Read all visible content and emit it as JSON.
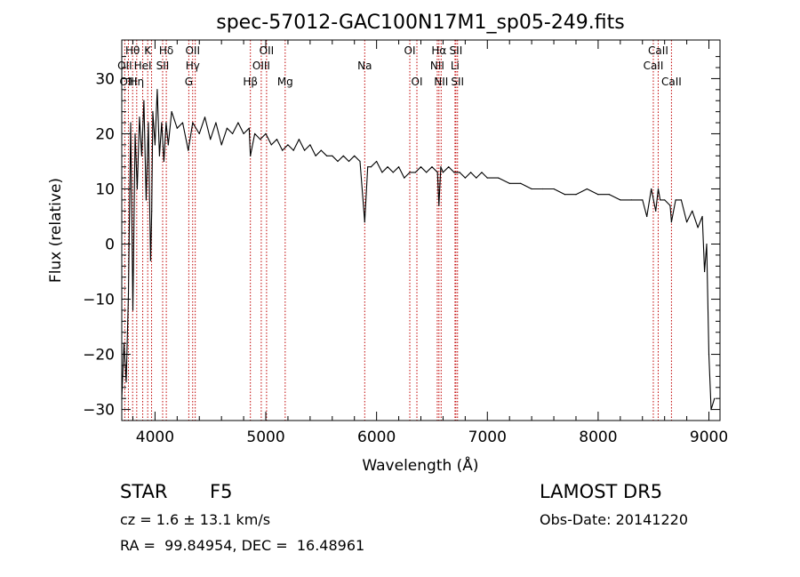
{
  "chart_data": {
    "type": "line",
    "title": "spec-57012-GAC100N17M1_sp05-249.fits",
    "xlabel": "Wavelength (Å)",
    "ylabel": "Flux (relative)",
    "xlim": [
      3700,
      9100
    ],
    "ylim": [
      -32,
      37
    ],
    "xticks": [
      4000,
      5000,
      6000,
      7000,
      8000,
      9000
    ],
    "yticks": [
      -30,
      -20,
      -10,
      0,
      10,
      20,
      30
    ],
    "grid": false,
    "series": [
      {
        "color": "#000000",
        "x": [
          3700,
          3720,
          3740,
          3760,
          3780,
          3800,
          3820,
          3840,
          3860,
          3880,
          3900,
          3920,
          3940,
          3960,
          3970,
          3980,
          4000,
          4020,
          4040,
          4060,
          4080,
          4100,
          4120,
          4150,
          4200,
          4250,
          4300,
          4340,
          4400,
          4450,
          4500,
          4550,
          4600,
          4650,
          4700,
          4750,
          4800,
          4850,
          4861,
          4900,
          4950,
          5000,
          5050,
          5100,
          5150,
          5200,
          5250,
          5300,
          5350,
          5400,
          5450,
          5500,
          5550,
          5600,
          5650,
          5700,
          5750,
          5800,
          5850,
          5893,
          5920,
          5950,
          6000,
          6050,
          6100,
          6150,
          6200,
          6250,
          6300,
          6350,
          6400,
          6450,
          6500,
          6550,
          6563,
          6580,
          6600,
          6650,
          6700,
          6750,
          6800,
          6850,
          6900,
          6950,
          7000,
          7100,
          7200,
          7300,
          7400,
          7500,
          7600,
          7700,
          7800,
          7900,
          8000,
          8100,
          8200,
          8300,
          8400,
          8440,
          8480,
          8500,
          8520,
          8542,
          8560,
          8600,
          8650,
          8662,
          8700,
          8750,
          8800,
          8850,
          8900,
          8940,
          8960,
          8980,
          9000,
          9020,
          9050
        ],
        "y": [
          -28,
          -18,
          -25,
          -9,
          22,
          -12,
          20,
          10,
          23,
          16,
          26,
          8,
          22,
          -3,
          6,
          24,
          18,
          28,
          16,
          22,
          15,
          22,
          18,
          24,
          21,
          22,
          17,
          22,
          20,
          23,
          19,
          22,
          18,
          21,
          20,
          22,
          20,
          21,
          16,
          20,
          19,
          20,
          18,
          19,
          17,
          18,
          17,
          19,
          17,
          18,
          16,
          17,
          16,
          16,
          15,
          16,
          15,
          16,
          15,
          4,
          14,
          14,
          15,
          13,
          14,
          13,
          14,
          12,
          13,
          13,
          14,
          13,
          14,
          13,
          7,
          14,
          13,
          14,
          13,
          13,
          12,
          13,
          12,
          13,
          12,
          12,
          11,
          11,
          10,
          10,
          10,
          9,
          9,
          10,
          9,
          9,
          8,
          8,
          8,
          5,
          10,
          8,
          6,
          10,
          8,
          8,
          7,
          4,
          8,
          8,
          4,
          6,
          3,
          5,
          -5,
          0,
          -20,
          -30,
          -28
        ]
      }
    ],
    "annotations": [
      {
        "label": "Hθ",
        "x": 3798,
        "row": 1
      },
      {
        "label": "K",
        "x": 3934,
        "row": 1
      },
      {
        "label": "Hδ",
        "x": 4102,
        "row": 1
      },
      {
        "label": "OII",
        "x": 4340,
        "row": 1
      },
      {
        "label": "OII",
        "x": 5007,
        "row": 1
      },
      {
        "label": "OI",
        "x": 6300,
        "row": 1
      },
      {
        "label": "Hα",
        "x": 6563,
        "row": 1
      },
      {
        "label": "SII",
        "x": 6716,
        "row": 1
      },
      {
        "label": "CaII",
        "x": 8542,
        "row": 1
      },
      {
        "label": "OII",
        "x": 3727,
        "row": 2
      },
      {
        "label": "HeI",
        "x": 3889,
        "row": 2
      },
      {
        "label": "SII",
        "x": 4069,
        "row": 2
      },
      {
        "label": "Hγ",
        "x": 4340,
        "row": 2
      },
      {
        "label": "OIII",
        "x": 4959,
        "row": 2
      },
      {
        "label": "Na",
        "x": 5893,
        "row": 2
      },
      {
        "label": "NII",
        "x": 6548,
        "row": 2
      },
      {
        "label": "Li",
        "x": 6708,
        "row": 2
      },
      {
        "label": "CaII",
        "x": 8498,
        "row": 2
      },
      {
        "label": "OIII",
        "x": 3760,
        "row": 3
      },
      {
        "label": "Hη",
        "x": 3835,
        "row": 3
      },
      {
        "label": "G",
        "x": 4305,
        "row": 3
      },
      {
        "label": "Hβ",
        "x": 4861,
        "row": 3
      },
      {
        "label": "Mg",
        "x": 5175,
        "row": 3
      },
      {
        "label": "OI",
        "x": 6364,
        "row": 3
      },
      {
        "label": "NII",
        "x": 6583,
        "row": 3
      },
      {
        "label": "SII",
        "x": 6731,
        "row": 3
      },
      {
        "label": "CaII",
        "x": 8662,
        "row": 3
      }
    ],
    "line_color": "#c00000",
    "line_positions": [
      3727,
      3760,
      3798,
      3835,
      3889,
      3934,
      3969,
      4069,
      4102,
      4305,
      4340,
      4363,
      4861,
      4959,
      5007,
      5175,
      5893,
      6300,
      6364,
      6548,
      6563,
      6583,
      6708,
      6716,
      6731,
      8498,
      8542,
      8662
    ]
  },
  "info": {
    "object_type": "STAR",
    "subclass": "F5",
    "survey": "LAMOST DR5",
    "velocity": "cz = 1.6 ± 13.1 km/s",
    "obs_date": "Obs-Date: 20141220",
    "coords": "RA =  99.84954, DEC =  16.48961"
  }
}
